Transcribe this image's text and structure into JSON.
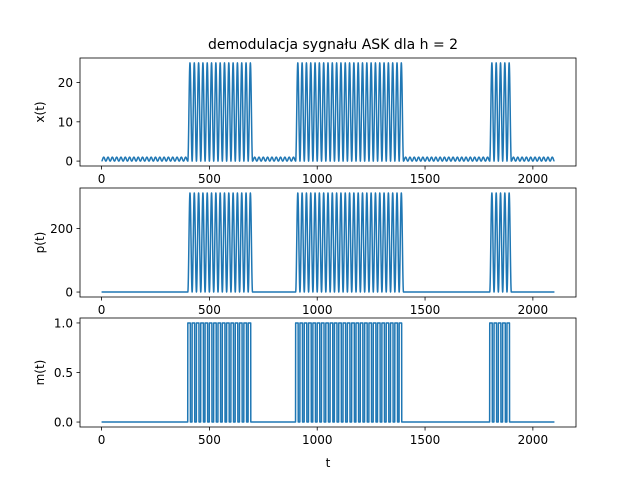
{
  "figure": {
    "title": "demodulacja sygnału ASK dla h = 2",
    "xlabel": "t",
    "line_color": "#1f77b4"
  },
  "chart_data": [
    {
      "type": "line",
      "name": "x",
      "ylabel": "x(t)",
      "title": "demodulacja sygnału ASK dla h = 2",
      "xlim": [
        -100,
        2200
      ],
      "ylim": [
        -1.25,
        26.25
      ],
      "xticks": [
        0,
        500,
        1000,
        1500,
        2000
      ],
      "yticks": [
        0,
        10,
        20
      ],
      "signal": {
        "t_max": 2100,
        "bit_length": 100,
        "bits": [
          0,
          0,
          0,
          0,
          1,
          1,
          1,
          0,
          0,
          1,
          1,
          1,
          1,
          1,
          0,
          0,
          0,
          0,
          1,
          0,
          0
        ],
        "low_amplitude": 1,
        "high_amplitude": 25,
        "low_cycles_per_bit": 5,
        "high_cycles_per_bit": 5
      }
    },
    {
      "type": "line",
      "name": "p",
      "ylabel": "p(t)",
      "xlim": [
        -100,
        2200
      ],
      "ylim": [
        -15.6,
        327.6
      ],
      "xticks": [
        0,
        500,
        1000,
        1500,
        2000
      ],
      "yticks": [
        0,
        200
      ],
      "signal": {
        "t_max": 2100,
        "bit_length": 100,
        "bits": [
          0,
          0,
          0,
          0,
          1,
          1,
          1,
          0,
          0,
          1,
          1,
          1,
          1,
          1,
          0,
          0,
          0,
          0,
          1,
          0,
          0
        ],
        "low_amplitude": 0,
        "high_amplitude": 312,
        "cycles_per_bit": 5
      }
    },
    {
      "type": "line",
      "name": "m",
      "ylabel": "m(t)",
      "xlabel": "t",
      "xlim": [
        -100,
        2200
      ],
      "ylim": [
        -0.05,
        1.05
      ],
      "xticks": [
        0,
        500,
        1000,
        1500,
        2000
      ],
      "yticks": [
        0.0,
        0.5,
        1.0
      ],
      "yticks_labels": [
        "0.0",
        "0.5",
        "1.0"
      ],
      "signal": {
        "t_max": 2100,
        "bit_length": 100,
        "bits": [
          0,
          0,
          0,
          0,
          1,
          1,
          1,
          0,
          0,
          1,
          1,
          1,
          1,
          1,
          0,
          0,
          0,
          0,
          1,
          0,
          0
        ],
        "pulses_per_bit": 5,
        "duty": 0.6
      }
    }
  ]
}
